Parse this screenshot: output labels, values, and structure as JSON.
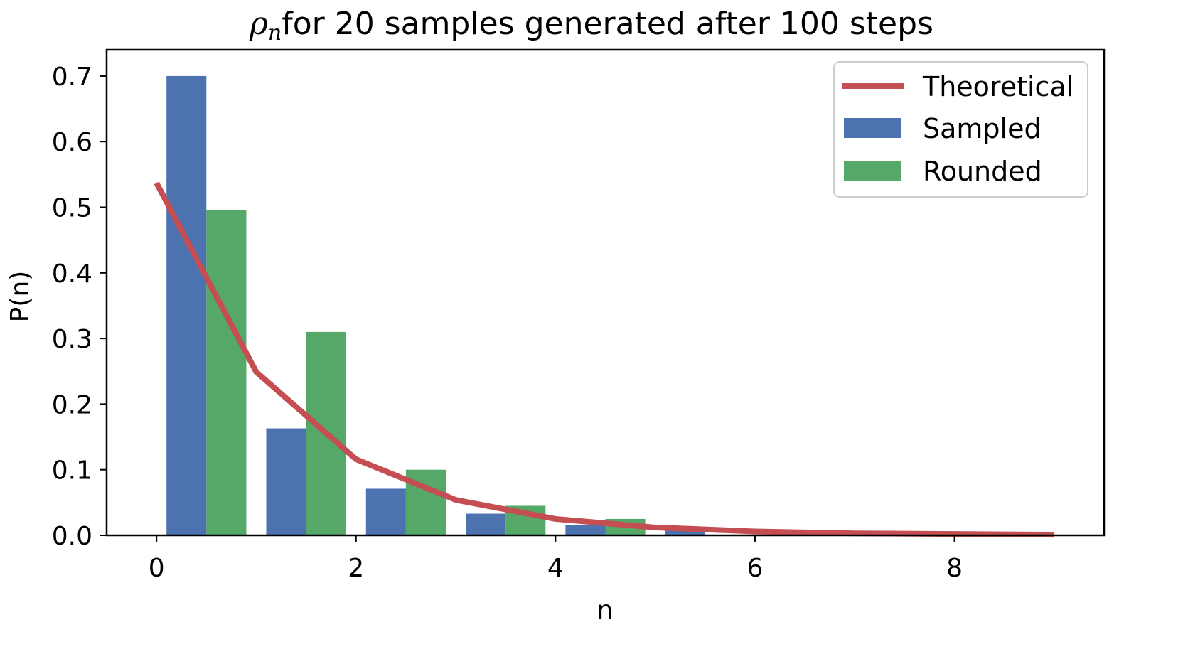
{
  "chart_data": {
    "type": "bar",
    "title": "for 20 samples generated after 100 steps",
    "title_symbol": "ρ",
    "title_symbol_sub": "n",
    "xlabel": "n",
    "ylabel": "P(n)",
    "xlim": [
      -0.5,
      9.5
    ],
    "ylim": [
      0,
      0.74
    ],
    "xticks": [
      0,
      2,
      4,
      6,
      8
    ],
    "yticks": [
      0.0,
      0.1,
      0.2,
      0.3,
      0.4,
      0.5,
      0.6,
      0.7
    ],
    "ytick_labels": [
      "0.0",
      "0.1",
      "0.2",
      "0.3",
      "0.4",
      "0.5",
      "0.6",
      "0.7"
    ],
    "bar_width": 0.4,
    "legend_position": "top-right",
    "series": [
      {
        "name": "Theoretical",
        "kind": "line",
        "color": "#c44e52",
        "x": [
          0,
          1,
          2,
          3,
          4,
          5,
          6,
          7,
          8,
          9
        ],
        "values": [
          0.537,
          0.249,
          0.116,
          0.054,
          0.025,
          0.012,
          0.006,
          0.003,
          0.002,
          0.001
        ]
      },
      {
        "name": "Sampled",
        "kind": "bar",
        "color": "#4c72b0",
        "offset": 0.3,
        "x": [
          0,
          1,
          2,
          3,
          4,
          5
        ],
        "values": [
          0.7,
          0.163,
          0.071,
          0.033,
          0.016,
          0.008
        ]
      },
      {
        "name": "Rounded",
        "kind": "bar",
        "color": "#55a868",
        "offset": 0.7,
        "x": [
          0,
          1,
          2,
          3,
          4
        ],
        "values": [
          0.496,
          0.31,
          0.1,
          0.045,
          0.025
        ]
      }
    ]
  }
}
